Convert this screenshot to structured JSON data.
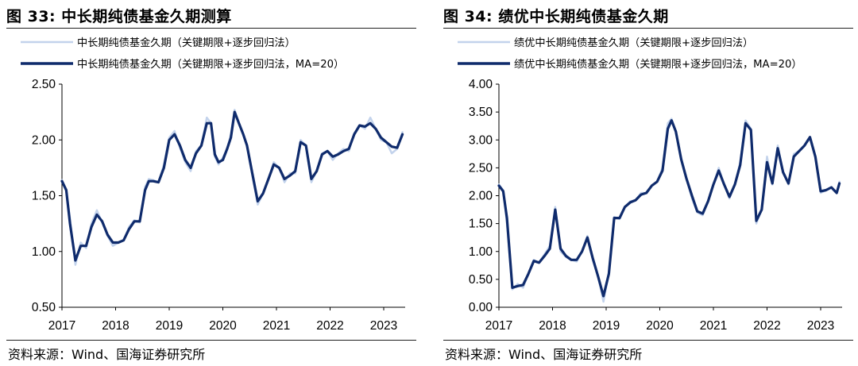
{
  "colors": {
    "raw": "#c3d3ec",
    "ma": "#0f2b6c",
    "axis": "#000000"
  },
  "panels": [
    {
      "title": "图 33:  中长期纯债基金久期测算",
      "source": "资料来源：Wind、国海证券研究所",
      "chart_data": {
        "type": "line",
        "legend_position": "top-left",
        "ylim": [
          0.5,
          2.5
        ],
        "yticks": [
          "0.50",
          "1.00",
          "1.50",
          "2.00",
          "2.50"
        ],
        "xticks": [
          "2017",
          "2018",
          "2019",
          "2020",
          "2021",
          "2022",
          "2023"
        ],
        "x": [
          2017.0,
          2017.08,
          2017.15,
          2017.25,
          2017.35,
          2017.45,
          2017.55,
          2017.65,
          2017.75,
          2017.85,
          2017.95,
          2018.05,
          2018.15,
          2018.25,
          2018.35,
          2018.45,
          2018.55,
          2018.62,
          2018.7,
          2018.8,
          2018.9,
          2019.0,
          2019.1,
          2019.2,
          2019.3,
          2019.4,
          2019.5,
          2019.6,
          2019.7,
          2019.78,
          2019.85,
          2019.92,
          2020.0,
          2020.08,
          2020.15,
          2020.22,
          2020.3,
          2020.38,
          2020.45,
          2020.55,
          2020.65,
          2020.75,
          2020.85,
          2020.95,
          2021.05,
          2021.15,
          2021.25,
          2021.35,
          2021.45,
          2021.55,
          2021.65,
          2021.75,
          2021.85,
          2021.95,
          2022.05,
          2022.15,
          2022.25,
          2022.35,
          2022.45,
          2022.55,
          2022.65,
          2022.75,
          2022.85,
          2022.95,
          2023.05,
          2023.15,
          2023.25,
          2023.35
        ],
        "series": [
          {
            "name": "中长期纯债基金久期（关键期限+逐步回归法）",
            "values": [
              1.64,
              1.55,
              1.3,
              0.88,
              1.08,
              1.03,
              1.25,
              1.37,
              1.26,
              1.14,
              1.05,
              1.08,
              1.1,
              1.22,
              1.28,
              1.26,
              1.58,
              1.65,
              1.64,
              1.62,
              1.78,
              2.02,
              2.08,
              1.93,
              1.8,
              1.72,
              1.9,
              1.95,
              2.2,
              2.15,
              1.85,
              1.78,
              1.84,
              1.92,
              2.05,
              2.27,
              2.15,
              2.05,
              1.95,
              1.68,
              1.42,
              1.52,
              1.65,
              1.8,
              1.75,
              1.62,
              1.7,
              1.7,
              2.0,
              1.95,
              1.62,
              1.72,
              1.88,
              1.9,
              1.82,
              1.88,
              1.92,
              1.9,
              2.06,
              2.13,
              2.1,
              2.2,
              2.1,
              2.0,
              1.98,
              1.88,
              1.92,
              2.07
            ]
          },
          {
            "name": "中长期纯债基金久期（关键期限+逐步回归法，MA=20）",
            "values": [
              1.63,
              1.55,
              1.25,
              0.92,
              1.05,
              1.05,
              1.22,
              1.33,
              1.27,
              1.15,
              1.08,
              1.08,
              1.1,
              1.2,
              1.27,
              1.27,
              1.55,
              1.63,
              1.63,
              1.62,
              1.75,
              2.0,
              2.05,
              1.95,
              1.82,
              1.75,
              1.88,
              1.95,
              2.15,
              2.15,
              1.87,
              1.8,
              1.82,
              1.92,
              2.02,
              2.25,
              2.15,
              2.05,
              1.95,
              1.7,
              1.45,
              1.52,
              1.65,
              1.78,
              1.75,
              1.65,
              1.68,
              1.72,
              1.98,
              1.95,
              1.65,
              1.72,
              1.87,
              1.9,
              1.85,
              1.87,
              1.9,
              1.92,
              2.05,
              2.13,
              2.12,
              2.15,
              2.1,
              2.02,
              1.98,
              1.94,
              1.93,
              2.05
            ]
          }
        ]
      }
    },
    {
      "title": "图 34:  绩优中长期纯债基金久期",
      "source": "资料来源：Wind、国海证券研究所",
      "chart_data": {
        "type": "line",
        "legend_position": "top-left",
        "ylim": [
          0.0,
          4.0
        ],
        "yticks": [
          "0.00",
          "0.50",
          "1.00",
          "1.50",
          "2.00",
          "2.50",
          "3.00",
          "3.50",
          "4.00"
        ],
        "xticks": [
          "2017",
          "2018",
          "2019",
          "2020",
          "2021",
          "2022",
          "2023"
        ],
        "x": [
          2017.0,
          2017.08,
          2017.15,
          2017.25,
          2017.35,
          2017.45,
          2017.55,
          2017.65,
          2017.75,
          2017.85,
          2017.95,
          2018.05,
          2018.15,
          2018.25,
          2018.35,
          2018.45,
          2018.55,
          2018.65,
          2018.75,
          2018.85,
          2018.95,
          2019.05,
          2019.15,
          2019.25,
          2019.35,
          2019.45,
          2019.55,
          2019.65,
          2019.75,
          2019.85,
          2019.95,
          2020.05,
          2020.15,
          2020.22,
          2020.3,
          2020.4,
          2020.5,
          2020.6,
          2020.7,
          2020.8,
          2020.9,
          2021.0,
          2021.1,
          2021.2,
          2021.3,
          2021.4,
          2021.5,
          2021.6,
          2021.7,
          2021.8,
          2021.9,
          2022.0,
          2022.1,
          2022.2,
          2022.3,
          2022.4,
          2022.5,
          2022.6,
          2022.7,
          2022.8,
          2022.9,
          2023.0,
          2023.1,
          2023.2,
          2023.3,
          2023.35
        ],
        "series": [
          {
            "name": "绩优中长期纯债基金久期（关键期限+逐步回归法）",
            "values": [
              2.2,
              2.1,
              1.5,
              0.32,
              0.42,
              0.35,
              0.6,
              0.85,
              0.8,
              0.95,
              1.1,
              1.8,
              1.0,
              0.9,
              0.85,
              0.82,
              1.0,
              1.28,
              0.85,
              0.55,
              0.1,
              0.62,
              1.62,
              1.58,
              1.8,
              1.9,
              1.92,
              2.05,
              2.05,
              2.18,
              2.25,
              2.5,
              3.3,
              3.38,
              3.15,
              2.65,
              2.3,
              1.95,
              1.7,
              1.65,
              1.9,
              2.2,
              2.5,
              2.2,
              1.95,
              2.2,
              2.6,
              3.35,
              3.2,
              1.5,
              1.75,
              2.7,
              2.2,
              2.9,
              2.42,
              2.2,
              2.75,
              2.8,
              2.9,
              3.05,
              2.7,
              2.05,
              2.1,
              2.15,
              2.05,
              2.25
            ]
          },
          {
            "name": "绩优中长期纯债基金久期（关键期限+逐步回归法，MA=20）",
            "values": [
              2.18,
              2.08,
              1.6,
              0.35,
              0.38,
              0.4,
              0.6,
              0.83,
              0.8,
              0.92,
              1.05,
              1.75,
              1.05,
              0.92,
              0.85,
              0.85,
              1.0,
              1.25,
              0.88,
              0.55,
              0.2,
              0.6,
              1.6,
              1.6,
              1.8,
              1.88,
              1.92,
              2.02,
              2.05,
              2.18,
              2.25,
              2.45,
              3.2,
              3.35,
              3.15,
              2.65,
              2.3,
              2.0,
              1.72,
              1.68,
              1.9,
              2.2,
              2.45,
              2.2,
              1.98,
              2.2,
              2.55,
              3.3,
              3.18,
              1.55,
              1.75,
              2.6,
              2.22,
              2.85,
              2.42,
              2.22,
              2.7,
              2.8,
              2.9,
              3.05,
              2.7,
              2.08,
              2.1,
              2.15,
              2.05,
              2.22
            ]
          }
        ]
      }
    }
  ]
}
